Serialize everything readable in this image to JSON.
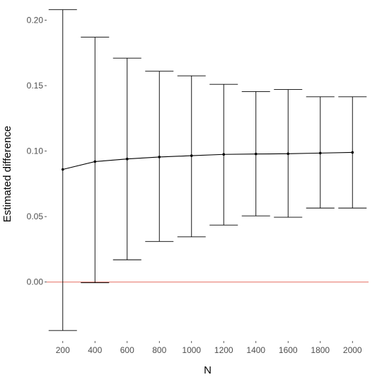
{
  "chart_data": {
    "type": "errorbar-line",
    "xlabel": "N",
    "ylabel": "Estimated difference",
    "ylim": [
      -0.045,
      0.21
    ],
    "xlim": [
      100,
      2100
    ],
    "yticks": [
      0.0,
      0.05,
      0.1,
      0.15,
      0.2
    ],
    "ytick_labels": [
      "0.00",
      "0.05",
      "0.10",
      "0.15",
      "0.20"
    ],
    "x": [
      200,
      400,
      600,
      800,
      1000,
      1200,
      1400,
      1600,
      1800,
      2000
    ],
    "x_labels": [
      "200",
      "400",
      "600",
      "800",
      "1000",
      "1200",
      "1400",
      "1600",
      "1800",
      "2000"
    ],
    "estimate": [
      0.086,
      0.092,
      0.094,
      0.0955,
      0.0965,
      0.0975,
      0.0978,
      0.098,
      0.0985,
      0.099
    ],
    "lower": [
      -0.037,
      -0.0005,
      0.017,
      0.031,
      0.0345,
      0.0435,
      0.0505,
      0.0495,
      0.0565,
      0.0565
    ],
    "upper": [
      0.208,
      0.187,
      0.171,
      0.161,
      0.1575,
      0.151,
      0.1455,
      0.147,
      0.1415,
      0.1415
    ],
    "reference_line": {
      "y": 0,
      "color": "#e87e72"
    },
    "grid": false,
    "colors": {
      "series": "#000000",
      "ticks_text": "#4d4d4d"
    }
  }
}
